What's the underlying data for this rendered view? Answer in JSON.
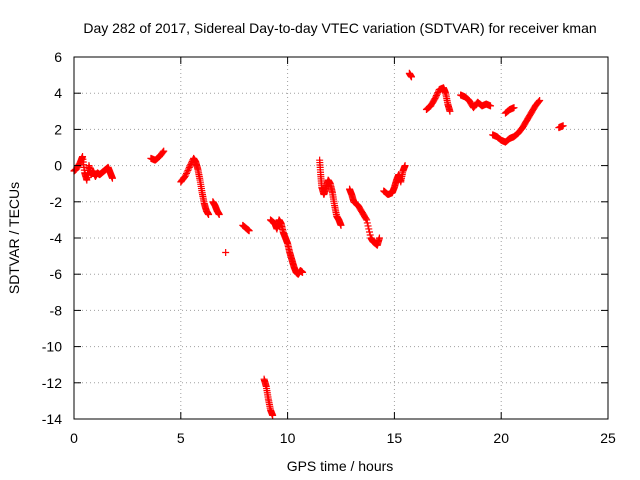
{
  "chart_data": {
    "type": "scatter",
    "title": "Day 282 of 2017, Sidereal Day-to-day VTEC variation (SDTVAR) for receiver kman",
    "xlabel": "GPS time / hours",
    "ylabel": "SDTVAR / TECUs",
    "xlim": [
      0,
      25
    ],
    "ylim": [
      -14,
      6
    ],
    "xticks": [
      0,
      5,
      10,
      15,
      20,
      25
    ],
    "yticks": [
      -14,
      -12,
      -10,
      -8,
      -6,
      -4,
      -2,
      0,
      2,
      4,
      6
    ],
    "grid": true,
    "marker": "+",
    "color": "#ff0000",
    "segments": [
      [
        [
          0.0,
          -0.3
        ],
        [
          0.1,
          -0.2
        ],
        [
          0.3,
          0.2
        ],
        [
          0.4,
          0.5
        ],
        [
          0.5,
          -0.4
        ],
        [
          0.6,
          -0.8
        ],
        [
          0.7,
          0.0
        ],
        [
          0.8,
          -0.5
        ],
        [
          0.9,
          -0.3
        ],
        [
          1.0,
          -0.6
        ],
        [
          1.1,
          -0.4
        ],
        [
          1.2,
          -0.5
        ],
        [
          1.3,
          -0.4
        ],
        [
          1.4,
          -0.3
        ],
        [
          1.5,
          -0.2
        ],
        [
          1.6,
          -0.1
        ],
        [
          1.7,
          -0.4
        ],
        [
          1.8,
          -0.7
        ]
      ],
      [
        [
          3.6,
          0.4
        ],
        [
          3.8,
          0.3
        ],
        [
          4.0,
          0.5
        ],
        [
          4.2,
          0.8
        ]
      ],
      [
        [
          5.0,
          -0.9
        ],
        [
          5.2,
          -0.6
        ],
        [
          5.4,
          -0.1
        ],
        [
          5.6,
          0.4
        ],
        [
          5.7,
          0.2
        ],
        [
          5.8,
          -0.2
        ],
        [
          5.9,
          -0.8
        ],
        [
          6.0,
          -1.5
        ],
        [
          6.1,
          -2.1
        ],
        [
          6.2,
          -2.5
        ],
        [
          6.3,
          -2.7
        ]
      ],
      [
        [
          6.5,
          -2.0
        ],
        [
          6.6,
          -2.2
        ],
        [
          6.7,
          -2.5
        ],
        [
          6.8,
          -2.7
        ]
      ],
      [
        [
          7.1,
          -4.8
        ]
      ],
      [
        [
          7.9,
          -3.3
        ],
        [
          8.1,
          -3.5
        ],
        [
          8.2,
          -3.6
        ]
      ],
      [
        [
          8.9,
          -11.8
        ],
        [
          9.0,
          -12.2
        ],
        [
          9.1,
          -12.9
        ],
        [
          9.2,
          -13.5
        ],
        [
          9.3,
          -13.8
        ]
      ],
      [
        [
          9.2,
          -3.0
        ],
        [
          9.4,
          -3.2
        ],
        [
          9.5,
          -3.5
        ],
        [
          9.6,
          -3.0
        ],
        [
          9.7,
          -3.2
        ],
        [
          9.8,
          -3.7
        ],
        [
          9.9,
          -4.0
        ],
        [
          10.0,
          -4.3
        ],
        [
          10.1,
          -4.8
        ],
        [
          10.2,
          -5.2
        ],
        [
          10.3,
          -5.6
        ],
        [
          10.4,
          -5.9
        ],
        [
          10.5,
          -6.0
        ],
        [
          10.6,
          -5.8
        ],
        [
          10.7,
          -5.9
        ]
      ],
      [
        [
          11.5,
          0.3
        ],
        [
          11.55,
          -0.5
        ],
        [
          11.6,
          -1.2
        ],
        [
          11.7,
          -1.6
        ],
        [
          11.8,
          -1.2
        ],
        [
          11.9,
          -0.8
        ],
        [
          12.0,
          -1.0
        ],
        [
          12.1,
          -1.5
        ],
        [
          12.2,
          -2.2
        ],
        [
          12.3,
          -2.8
        ],
        [
          12.4,
          -3.0
        ],
        [
          12.5,
          -3.3
        ]
      ],
      [
        [
          12.9,
          -1.3
        ],
        [
          13.0,
          -1.6
        ],
        [
          13.1,
          -2.0
        ],
        [
          13.3,
          -2.2
        ],
        [
          13.5,
          -2.6
        ],
        [
          13.7,
          -3.0
        ],
        [
          13.9,
          -4.0
        ],
        [
          14.0,
          -4.2
        ],
        [
          14.2,
          -4.4
        ],
        [
          14.3,
          -4.0
        ]
      ],
      [
        [
          14.5,
          -1.4
        ],
        [
          14.7,
          -1.6
        ],
        [
          14.9,
          -1.5
        ],
        [
          15.0,
          -1.2
        ],
        [
          15.1,
          -0.8
        ],
        [
          15.2,
          -0.5
        ],
        [
          15.3,
          -0.9
        ],
        [
          15.4,
          -0.3
        ],
        [
          15.5,
          0.0
        ]
      ],
      [
        [
          15.7,
          5.1
        ],
        [
          15.8,
          4.9
        ]
      ],
      [
        [
          16.5,
          3.1
        ],
        [
          16.7,
          3.3
        ],
        [
          16.9,
          3.7
        ],
        [
          17.1,
          4.2
        ],
        [
          17.3,
          4.3
        ],
        [
          17.4,
          4.0
        ],
        [
          17.5,
          3.4
        ],
        [
          17.6,
          3.0
        ]
      ],
      [
        [
          18.1,
          3.9
        ],
        [
          18.3,
          3.8
        ],
        [
          18.5,
          3.6
        ],
        [
          18.7,
          3.2
        ],
        [
          18.9,
          3.5
        ],
        [
          19.1,
          3.3
        ],
        [
          19.3,
          3.4
        ],
        [
          19.5,
          3.3
        ]
      ],
      [
        [
          19.6,
          1.7
        ],
        [
          19.8,
          1.6
        ],
        [
          20.0,
          1.4
        ],
        [
          20.2,
          1.3
        ],
        [
          20.4,
          1.5
        ],
        [
          20.6,
          1.6
        ],
        [
          20.8,
          1.8
        ],
        [
          21.0,
          2.1
        ],
        [
          21.2,
          2.5
        ],
        [
          21.4,
          2.9
        ],
        [
          21.6,
          3.3
        ],
        [
          21.8,
          3.6
        ]
      ],
      [
        [
          20.2,
          2.9
        ],
        [
          20.4,
          3.1
        ],
        [
          20.6,
          3.2
        ]
      ],
      [
        [
          22.7,
          2.1
        ],
        [
          22.9,
          2.2
        ]
      ]
    ]
  }
}
